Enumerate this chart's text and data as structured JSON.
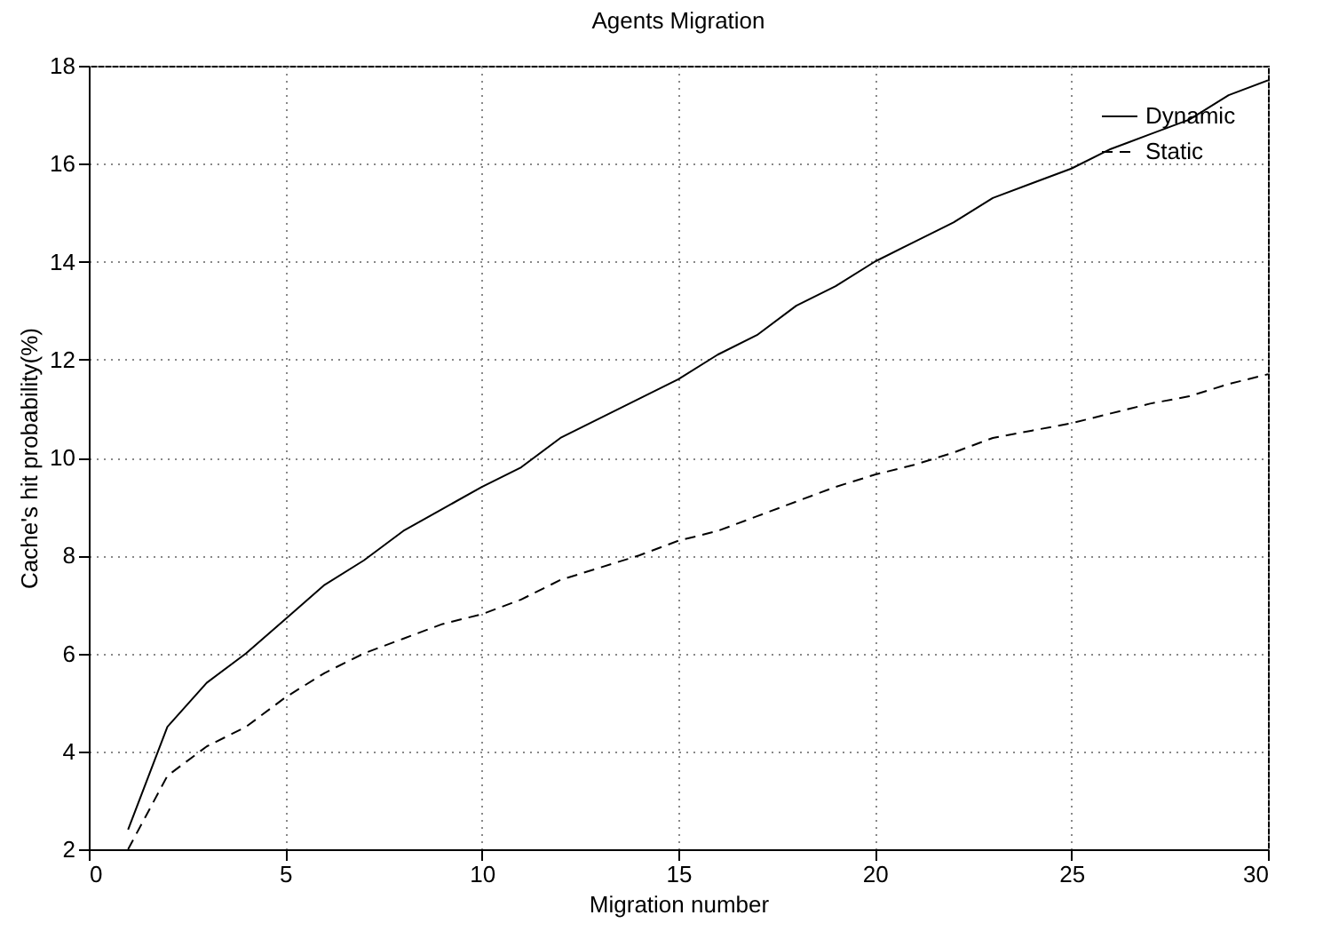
{
  "chart_data": {
    "type": "line",
    "title": "Agents Migration",
    "xlabel": "Migration number",
    "ylabel": "Cache's hit probability(%)",
    "x": [
      1,
      2,
      3,
      4,
      5,
      6,
      7,
      8,
      9,
      10,
      11,
      12,
      13,
      14,
      15,
      16,
      17,
      18,
      19,
      20,
      21,
      22,
      23,
      24,
      25,
      26,
      27,
      28,
      29,
      30
    ],
    "series": [
      {
        "name": "Dynamic",
        "color": "#000000",
        "line_style": "solid",
        "values": [
          2.4,
          4.5,
          5.4,
          6.0,
          6.7,
          7.4,
          7.9,
          8.5,
          8.95,
          9.4,
          9.8,
          10.4,
          10.8,
          11.2,
          11.6,
          12.1,
          12.5,
          13.1,
          13.5,
          14.0,
          14.4,
          14.8,
          15.3,
          15.6,
          15.9,
          16.3,
          16.6,
          16.9,
          17.4,
          17.7
        ]
      },
      {
        "name": "Static",
        "color": "#000000",
        "line_style": "dashed",
        "values": [
          2.0,
          3.5,
          4.1,
          4.5,
          5.1,
          5.6,
          6.0,
          6.3,
          6.6,
          6.8,
          7.1,
          7.5,
          7.75,
          8.0,
          8.3,
          8.5,
          8.8,
          9.1,
          9.4,
          9.65,
          9.85,
          10.1,
          10.4,
          10.55,
          10.7,
          10.9,
          11.1,
          11.25,
          11.5,
          11.7
        ]
      }
    ],
    "xlim": [
      0,
      30
    ],
    "xticks": [
      0,
      5,
      10,
      15,
      20,
      25,
      30
    ],
    "ylim": [
      2,
      18
    ],
    "yticks": [
      2,
      4,
      6,
      8,
      10,
      12,
      14,
      16,
      18
    ],
    "grid": true,
    "legend": "top right",
    "marker": "none"
  }
}
